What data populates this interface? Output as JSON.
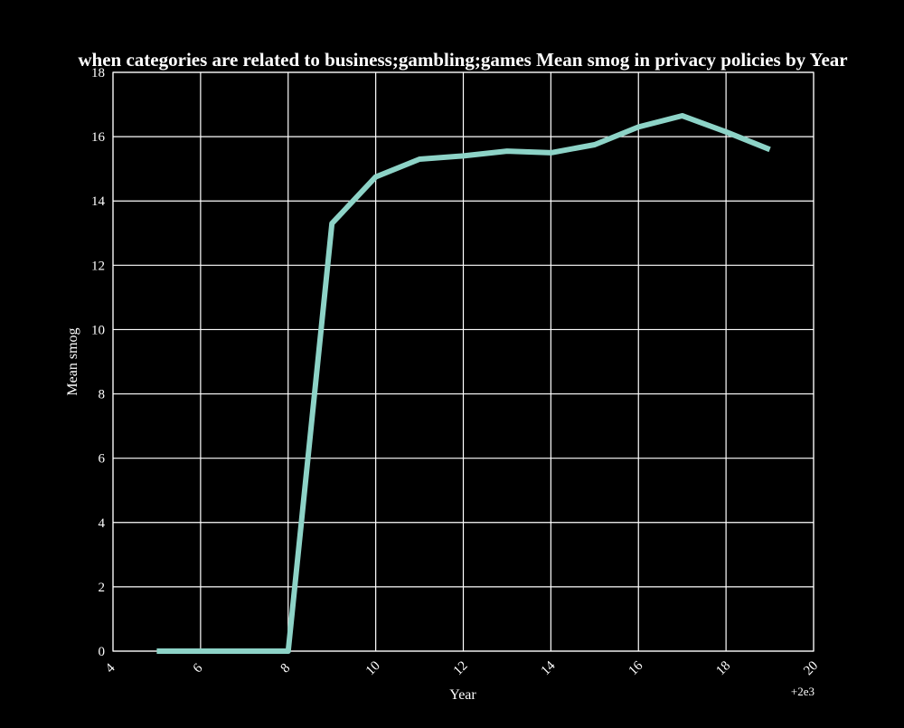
{
  "chart_data": {
    "type": "line",
    "title": "when categories are related to business;gambling;games Mean smog in privacy policies by Year",
    "xlabel": "Year",
    "ylabel": "Mean smog",
    "x_offset_label": "+2e3",
    "xlim": [
      4,
      20
    ],
    "ylim": [
      0,
      18
    ],
    "x_ticks": [
      "4",
      "6",
      "8",
      "10",
      "12",
      "14",
      "16",
      "18",
      "20"
    ],
    "y_ticks": [
      "0",
      "2",
      "4",
      "6",
      "8",
      "10",
      "12",
      "14",
      "16",
      "18"
    ],
    "grid": true,
    "series": [
      {
        "color": "#8dd3c7",
        "x": [
          5,
          6,
          7,
          8,
          9,
          10,
          11,
          12,
          13,
          14,
          15,
          16,
          17,
          18,
          19
        ],
        "y": [
          0,
          0,
          0,
          0,
          13.3,
          14.75,
          15.3,
          15.4,
          15.55,
          15.5,
          15.75,
          16.3,
          16.65,
          16.15,
          15.6
        ]
      }
    ]
  }
}
